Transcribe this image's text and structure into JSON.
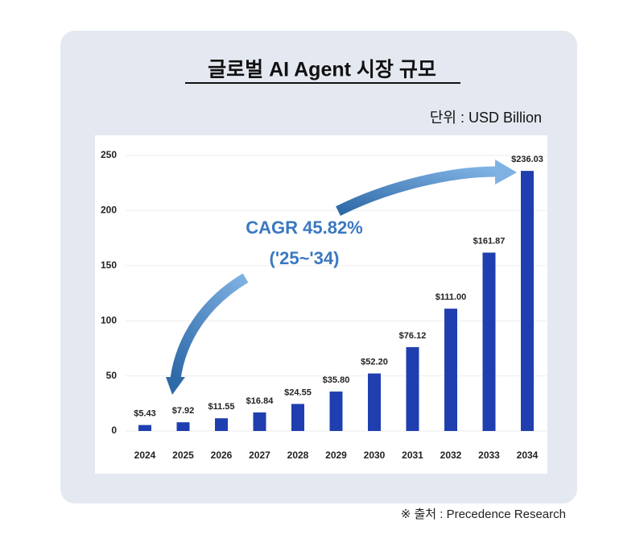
{
  "chart_data": {
    "type": "bar",
    "title": "글로벌 AI Agent 시장 규모",
    "unit_label": "단위 : USD Billion",
    "source": "※ 출처 : Precedence Research",
    "annotations": [
      "CAGR 45.82%",
      "('25~'34)"
    ],
    "categories": [
      "2024",
      "2025",
      "2026",
      "2027",
      "2028",
      "2029",
      "2030",
      "2031",
      "2032",
      "2033",
      "2034"
    ],
    "values": [
      5.43,
      7.92,
      11.55,
      16.84,
      24.55,
      35.8,
      52.2,
      76.12,
      111,
      161.87,
      236.03
    ],
    "value_labels": [
      "$5.43",
      "$7.92",
      "$11.55",
      "$16.84",
      "$24.55",
      "$35.80",
      "$52.20",
      "$76.12",
      "$111.00",
      "$161.87",
      "$236.03"
    ],
    "color": "#1f3fb0",
    "ylim": [
      0,
      250
    ],
    "yticks": [
      0,
      50,
      100,
      150,
      200,
      250
    ],
    "grid": true
  }
}
